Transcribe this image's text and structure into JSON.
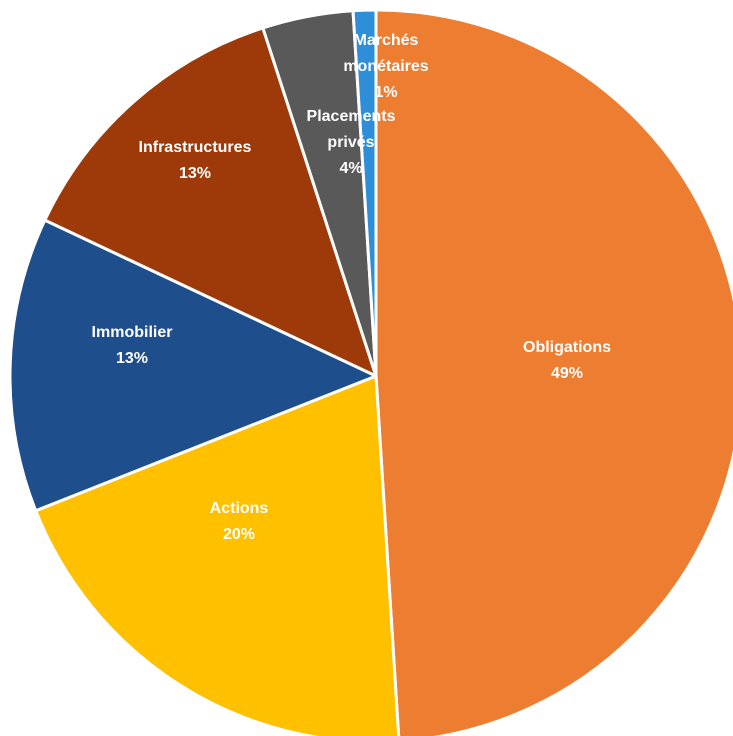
{
  "chart_data": {
    "type": "pie",
    "title": "",
    "start_angle_deg": 0,
    "direction": "clockwise",
    "legend": "none",
    "slices": [
      {
        "name": "Obligations",
        "value": 49,
        "label_pct": "49%",
        "color": "#ED7D31"
      },
      {
        "name": "Actions",
        "value": 20,
        "label_pct": "20%",
        "color": "#FFC000"
      },
      {
        "name": "Immobilier",
        "value": 13,
        "label_pct": "13%",
        "color": "#1F4E8C"
      },
      {
        "name": "Infrastructures",
        "value": 13,
        "label_pct": "13%",
        "color": "#9E3A0A"
      },
      {
        "name": "Placements privés",
        "value": 4,
        "label_pct": "4%",
        "color": "#595959"
      },
      {
        "name": "Marchés monétaires",
        "value": 1,
        "label_pct": "1%",
        "color": "#2E8FD8"
      }
    ]
  }
}
